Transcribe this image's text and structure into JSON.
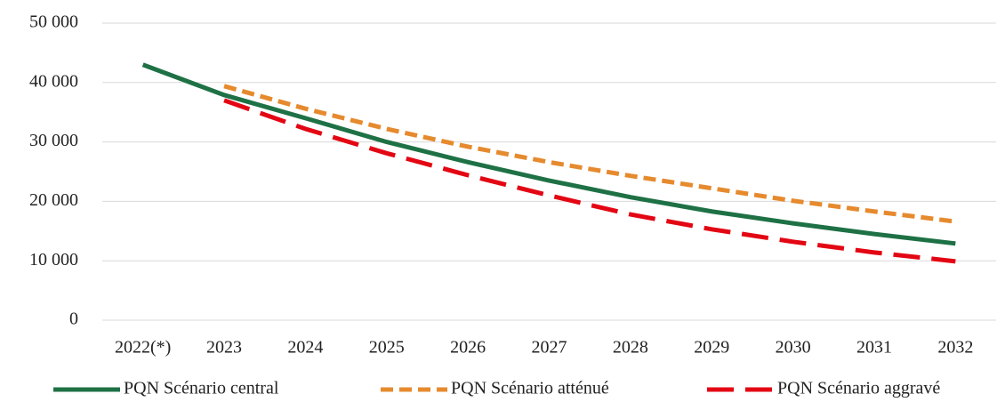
{
  "chart_data": {
    "type": "line",
    "categories": [
      "2022(*)",
      "2023",
      "2024",
      "2025",
      "2026",
      "2027",
      "2028",
      "2029",
      "2030",
      "2031",
      "2032"
    ],
    "series": [
      {
        "name": "PQN Scénario central",
        "color": "#1e7145",
        "line_style": "solid",
        "values": [
          43000,
          37900,
          34000,
          30000,
          26600,
          23500,
          20700,
          18300,
          16300,
          14500,
          12900
        ]
      },
      {
        "name": "PQN Scénario atténué",
        "color": "#e68a2e",
        "line_style": "dashed",
        "values": [
          null,
          39400,
          35600,
          32200,
          29200,
          26600,
          24300,
          22200,
          20100,
          18300,
          16600
        ]
      },
      {
        "name": "PQN Scénario aggravé",
        "color": "#e30613",
        "line_style": "long-dash",
        "values": [
          null,
          37000,
          32200,
          28100,
          24400,
          21000,
          17800,
          15300,
          13200,
          11400,
          9900
        ]
      }
    ],
    "ylim": [
      0,
      50000
    ],
    "yticks": [
      0,
      {
        "value": 10000,
        "label": "10 000"
      },
      {
        "value": 20000,
        "label": "20 000"
      },
      {
        "value": 30000,
        "label": "30 000"
      },
      {
        "value": 40000,
        "label": "40 000"
      },
      {
        "value": 50000,
        "label": "50 000"
      }
    ],
    "grid": true,
    "legend": "bottom"
  }
}
